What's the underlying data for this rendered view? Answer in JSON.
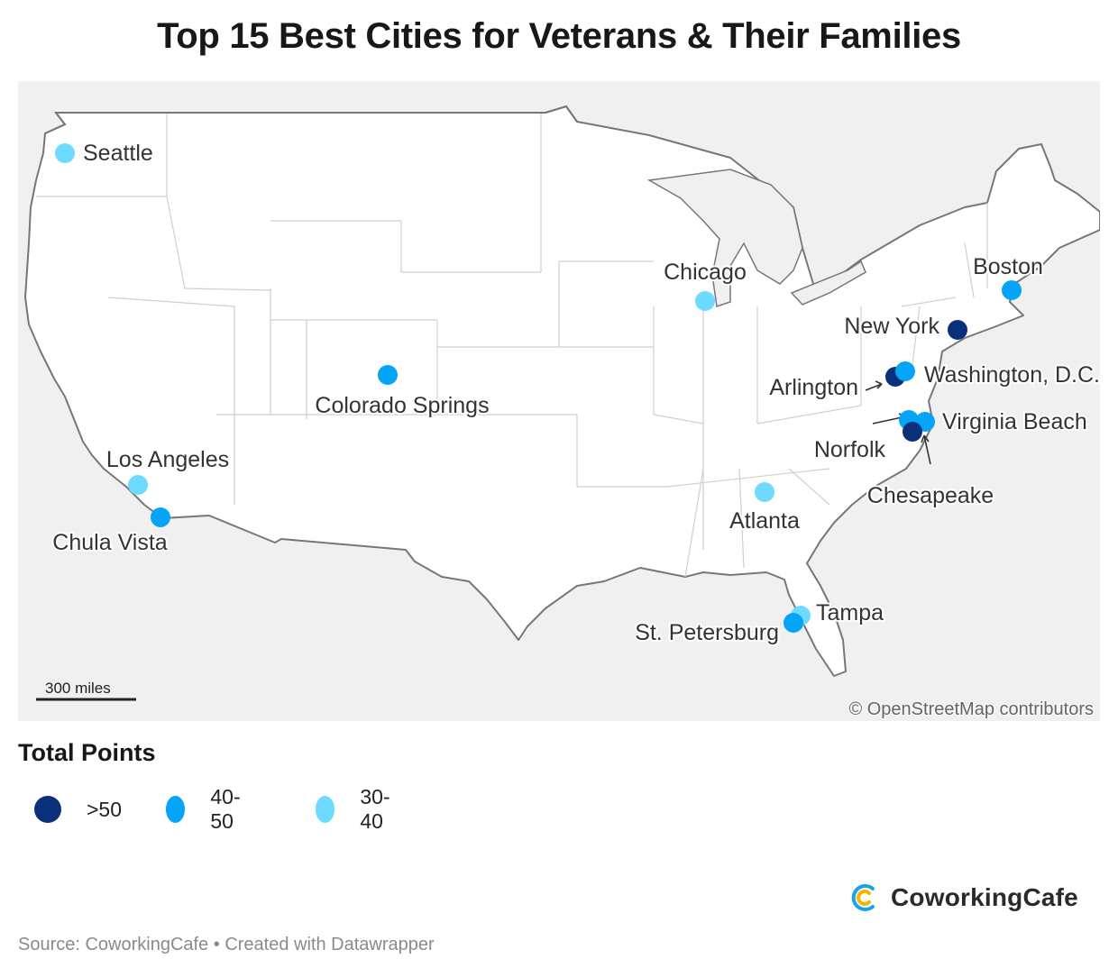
{
  "title": "Top 15 Best Cities for Veterans & Their Families",
  "colors": {
    "over_50": "#0b2f7a",
    "from_40_to_50": "#04a4f8",
    "from_30_to_40": "#6fdaff",
    "land": "#ffffff",
    "neighbor_land": "#f0f0f0",
    "border": "#777777",
    "state_line": "#c8c8c8"
  },
  "map": {
    "attribution": "© OpenStreetMap contributors",
    "scale_label": "300 miles",
    "cities": [
      {
        "name": "Seattle",
        "category": "30-40"
      },
      {
        "name": "Chicago",
        "category": "30-40"
      },
      {
        "name": "Boston",
        "category": "40-50"
      },
      {
        "name": "New York",
        "category": ">50"
      },
      {
        "name": "Arlington",
        "category": ">50"
      },
      {
        "name": "Washington, D.C.",
        "category": "40-50"
      },
      {
        "name": "Colorado Springs",
        "category": "40-50"
      },
      {
        "name": "Virginia Beach",
        "category": "40-50"
      },
      {
        "name": "Norfolk",
        "category": "40-50"
      },
      {
        "name": "Chesapeake",
        "category": ">50"
      },
      {
        "name": "Los Angeles",
        "category": "30-40"
      },
      {
        "name": "Chula Vista",
        "category": "40-50"
      },
      {
        "name": "Atlanta",
        "category": "30-40"
      },
      {
        "name": "Tampa",
        "category": "30-40"
      },
      {
        "name": "St. Petersburg",
        "category": "40-50"
      }
    ]
  },
  "legend": {
    "title": "Total Points",
    "items": [
      {
        "label": ">50",
        "color": "#0b2f7a"
      },
      {
        "label": "40-50",
        "color": "#04a4f8"
      },
      {
        "label": "30-40",
        "color": "#6fdaff"
      }
    ]
  },
  "brand": {
    "name": "CoworkingCafe",
    "icon": "coworkingcafe-logo-icon"
  },
  "footer": {
    "source": "Source: CoworkingCafe • Created with Datawrapper"
  }
}
